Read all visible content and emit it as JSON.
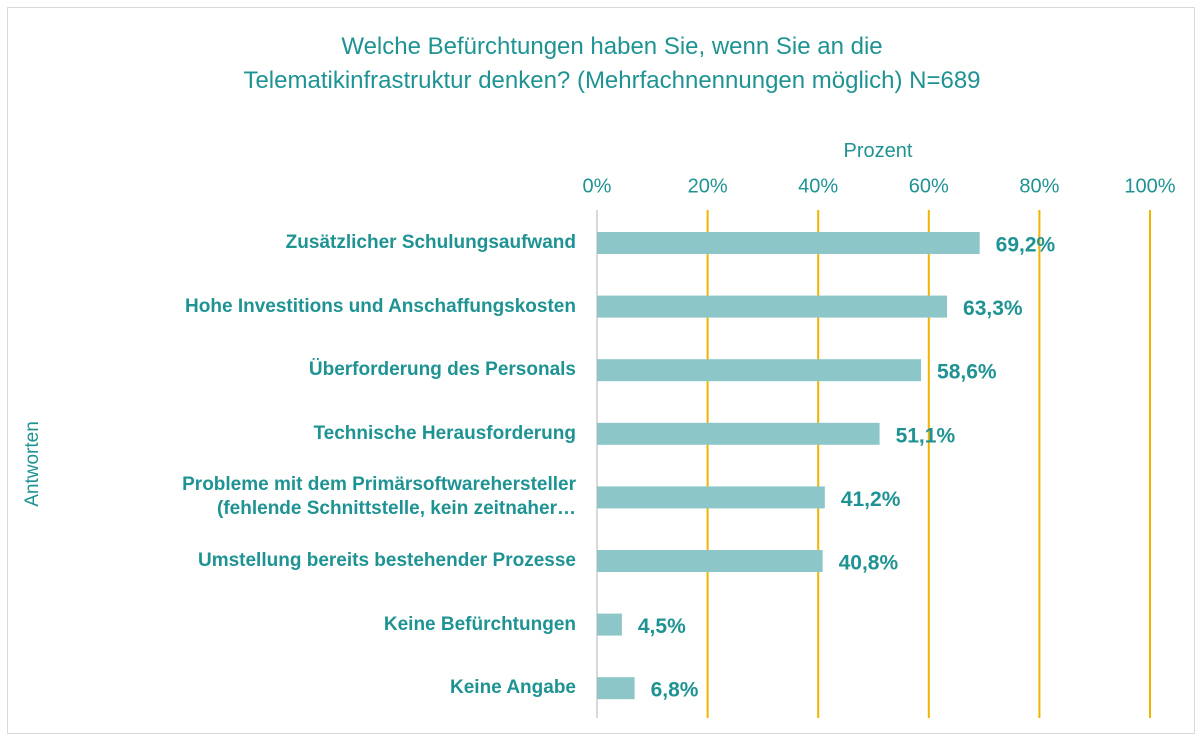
{
  "chart_data": {
    "type": "bar",
    "orientation": "horizontal",
    "title": "Welche Befürchtungen haben Sie, wenn Sie an die\nTelematikinfrastruktur denken? (Mehrfachnennungen möglich) N=689",
    "x_label": "Prozent",
    "y_label": "Antworten",
    "categories": [
      "Zusätzlicher  Schulungsaufwand",
      "Hohe Investitions und Anschaffungskosten",
      "Überforderung des Personals",
      "Technische Herausforderung ",
      "Probleme mit dem Primärsoftwarehersteller\n(fehlende Schnittstelle, kein zeitnaher…",
      "Umstellung bereits bestehender Prozesse",
      "Keine Befürchtungen",
      "Keine Angabe"
    ],
    "values": [
      69.2,
      63.3,
      58.6,
      51.1,
      41.2,
      40.8,
      4.5,
      6.8
    ],
    "value_labels": [
      "69,2%",
      "63,3%",
      "58,6%",
      "51,1%",
      "41,2%",
      "40,8%",
      "4,5%",
      "6,8%"
    ],
    "color": "#8cc6c8",
    "grid_color": "#f0b400",
    "xlim": [
      0,
      100
    ],
    "xticks": [
      {
        "value": 0,
        "label": "0%"
      },
      {
        "value": 20,
        "label": "20%"
      },
      {
        "value": 40,
        "label": "40%"
      },
      {
        "value": 60,
        "label": "60%"
      },
      {
        "value": 80,
        "label": "80%"
      },
      {
        "value": 100,
        "label": "100%"
      }
    ],
    "grid": true
  }
}
